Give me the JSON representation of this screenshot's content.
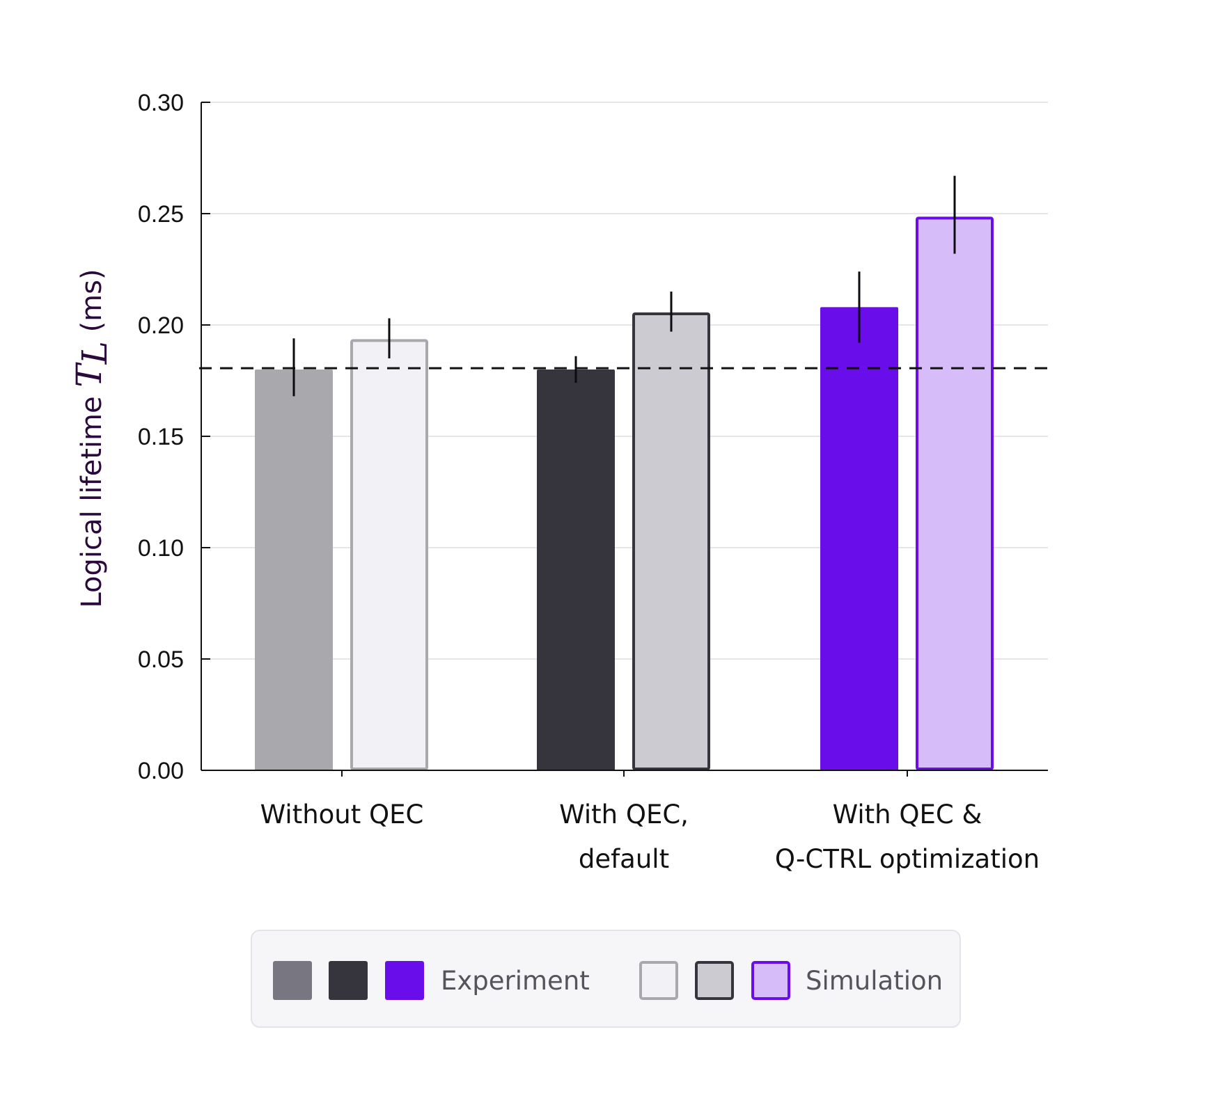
{
  "chart_data": {
    "type": "bar",
    "title": "",
    "xlabel": "",
    "ylabel": {
      "prefix": "Logical lifetime ",
      "symbol": "T",
      "subscript": "L",
      "suffix": " (ms)"
    },
    "ylim": [
      0,
      0.3
    ],
    "yticks": [
      "0.00",
      "0.05",
      "0.10",
      "0.15",
      "0.20",
      "0.25",
      "0.30"
    ],
    "ytick_values": [
      0,
      0.05,
      0.1,
      0.15,
      0.2,
      0.25,
      0.3
    ],
    "grid": "horizontal",
    "categories": [
      [
        "Without QEC"
      ],
      [
        "With QEC,",
        "default"
      ],
      [
        "With QEC &",
        "Q-CTRL optimization"
      ]
    ],
    "series": [
      {
        "name": "Experiment",
        "values": [
          0.18,
          0.18,
          0.208
        ],
        "error_low": [
          0.168,
          0.174,
          0.192
        ],
        "error_high": [
          0.194,
          0.186,
          0.224
        ],
        "fills": [
          "#a9a8ad",
          "#36343d",
          "#6a0deb"
        ],
        "legend_fills": [
          "#787680",
          "#36343d",
          "#6a0deb"
        ]
      },
      {
        "name": "Simulation",
        "values": [
          0.193,
          0.205,
          0.248
        ],
        "error_low": [
          0.185,
          0.197,
          0.232
        ],
        "error_high": [
          0.203,
          0.215,
          0.267
        ],
        "fills": [
          "#f2f1f6",
          "#cccbd1",
          "#d7bcfa"
        ],
        "strokes": [
          "#a9a8ad",
          "#36343d",
          "#6a0deb"
        ]
      }
    ],
    "reference_line": {
      "value": 0.1806,
      "style": "dashed",
      "color": "#111111"
    },
    "legend": {
      "placement": "bottom",
      "background": "#f6f6f8"
    }
  }
}
